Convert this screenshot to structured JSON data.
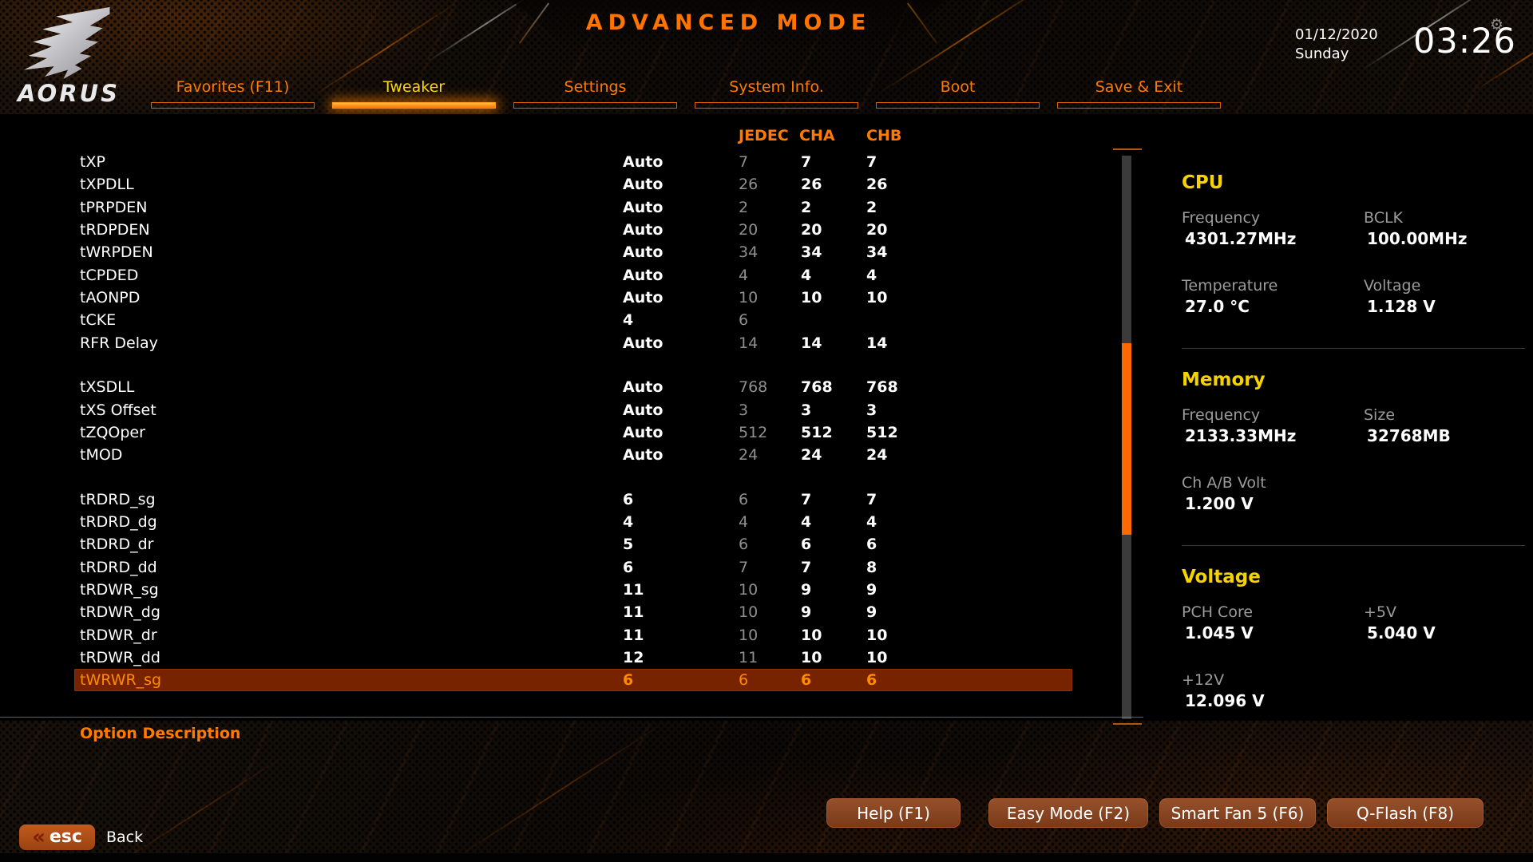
{
  "header": {
    "title": "ADVANCED MODE",
    "brand": "AORUS",
    "date": "01/12/2020",
    "day": "Sunday",
    "time": "03:26",
    "gear_icon": "⚙"
  },
  "tabs": [
    {
      "label": "Favorites (F11)",
      "active": false
    },
    {
      "label": "Tweaker",
      "active": true
    },
    {
      "label": "Settings",
      "active": false
    },
    {
      "label": "System Info.",
      "active": false
    },
    {
      "label": "Boot",
      "active": false
    },
    {
      "label": "Save & Exit",
      "active": false
    }
  ],
  "timing_table": {
    "columns": [
      "JEDEC",
      "CHA",
      "CHB"
    ],
    "rows": [
      {
        "name": "tXP",
        "setting": "Auto",
        "jedec": "7",
        "cha": "7",
        "chb": "7"
      },
      {
        "name": "tXPDLL",
        "setting": "Auto",
        "jedec": "26",
        "cha": "26",
        "chb": "26"
      },
      {
        "name": "tPRPDEN",
        "setting": "Auto",
        "jedec": "2",
        "cha": "2",
        "chb": "2"
      },
      {
        "name": "tRDPDEN",
        "setting": "Auto",
        "jedec": "20",
        "cha": "20",
        "chb": "20"
      },
      {
        "name": "tWRPDEN",
        "setting": "Auto",
        "jedec": "34",
        "cha": "34",
        "chb": "34"
      },
      {
        "name": "tCPDED",
        "setting": "Auto",
        "jedec": "4",
        "cha": "4",
        "chb": "4"
      },
      {
        "name": "tAONPD",
        "setting": "Auto",
        "jedec": "10",
        "cha": "10",
        "chb": "10"
      },
      {
        "name": "tCKE",
        "setting": "4",
        "jedec": "6",
        "cha": "",
        "chb": ""
      },
      {
        "name": "RFR Delay",
        "setting": "Auto",
        "jedec": "14",
        "cha": "14",
        "chb": "14"
      },
      {
        "name": "tXSDLL",
        "setting": "Auto",
        "jedec": "768",
        "cha": "768",
        "chb": "768",
        "gap_before": true
      },
      {
        "name": "tXS Offset",
        "setting": "Auto",
        "jedec": "3",
        "cha": "3",
        "chb": "3"
      },
      {
        "name": "tZQOper",
        "setting": "Auto",
        "jedec": "512",
        "cha": "512",
        "chb": "512"
      },
      {
        "name": "tMOD",
        "setting": "Auto",
        "jedec": "24",
        "cha": "24",
        "chb": "24"
      },
      {
        "name": "tRDRD_sg",
        "setting": "6",
        "jedec": "6",
        "cha": "7",
        "chb": "7",
        "gap_before": true
      },
      {
        "name": "tRDRD_dg",
        "setting": "4",
        "jedec": "4",
        "cha": "4",
        "chb": "4"
      },
      {
        "name": "tRDRD_dr",
        "setting": "5",
        "jedec": "6",
        "cha": "6",
        "chb": "6"
      },
      {
        "name": "tRDRD_dd",
        "setting": "6",
        "jedec": "7",
        "cha": "7",
        "chb": "8"
      },
      {
        "name": "tRDWR_sg",
        "setting": "11",
        "jedec": "10",
        "cha": "9",
        "chb": "9"
      },
      {
        "name": "tRDWR_dg",
        "setting": "11",
        "jedec": "10",
        "cha": "9",
        "chb": "9"
      },
      {
        "name": "tRDWR_dr",
        "setting": "11",
        "jedec": "10",
        "cha": "10",
        "chb": "10"
      },
      {
        "name": "tRDWR_dd",
        "setting": "12",
        "jedec": "11",
        "cha": "10",
        "chb": "10"
      },
      {
        "name": "tWRWR_sg",
        "setting": "6",
        "jedec": "6",
        "cha": "6",
        "chb": "6",
        "highlighted": true
      }
    ]
  },
  "sidebar": {
    "sections": [
      {
        "title": "CPU",
        "items": [
          {
            "label": "Frequency",
            "value": "4301.27MHz"
          },
          {
            "label": "BCLK",
            "value": "100.00MHz"
          },
          {
            "label": "Temperature",
            "value": "27.0 °C"
          },
          {
            "label": "Voltage",
            "value": "1.128 V"
          }
        ]
      },
      {
        "title": "Memory",
        "items": [
          {
            "label": "Frequency",
            "value": "2133.33MHz"
          },
          {
            "label": "Size",
            "value": "32768MB"
          },
          {
            "label": "Ch A/B Volt",
            "value": "1.200 V"
          }
        ]
      },
      {
        "title": "Voltage",
        "items": [
          {
            "label": "PCH Core",
            "value": "1.045 V"
          },
          {
            "label": "+5V",
            "value": "5.040 V"
          },
          {
            "label": "+12V",
            "value": "12.096 V"
          }
        ]
      }
    ]
  },
  "footer": {
    "option_description": "Option Description",
    "buttons": [
      "Help (F1)",
      "Easy Mode (F2)",
      "Smart Fan 5 (F6)",
      "Q-Flash (F8)"
    ],
    "esc": {
      "chevrons": "«",
      "key": "esc",
      "label": "Back"
    }
  },
  "colors": {
    "accent_orange": "#ff7300",
    "active_tab_yellow": "#ffd800",
    "section_title_yellow": "#f5d300",
    "dim_value_gray": "#8f8f8f",
    "highlight_row_bg": "#772300",
    "highlight_row_text": "#ff8a00"
  }
}
